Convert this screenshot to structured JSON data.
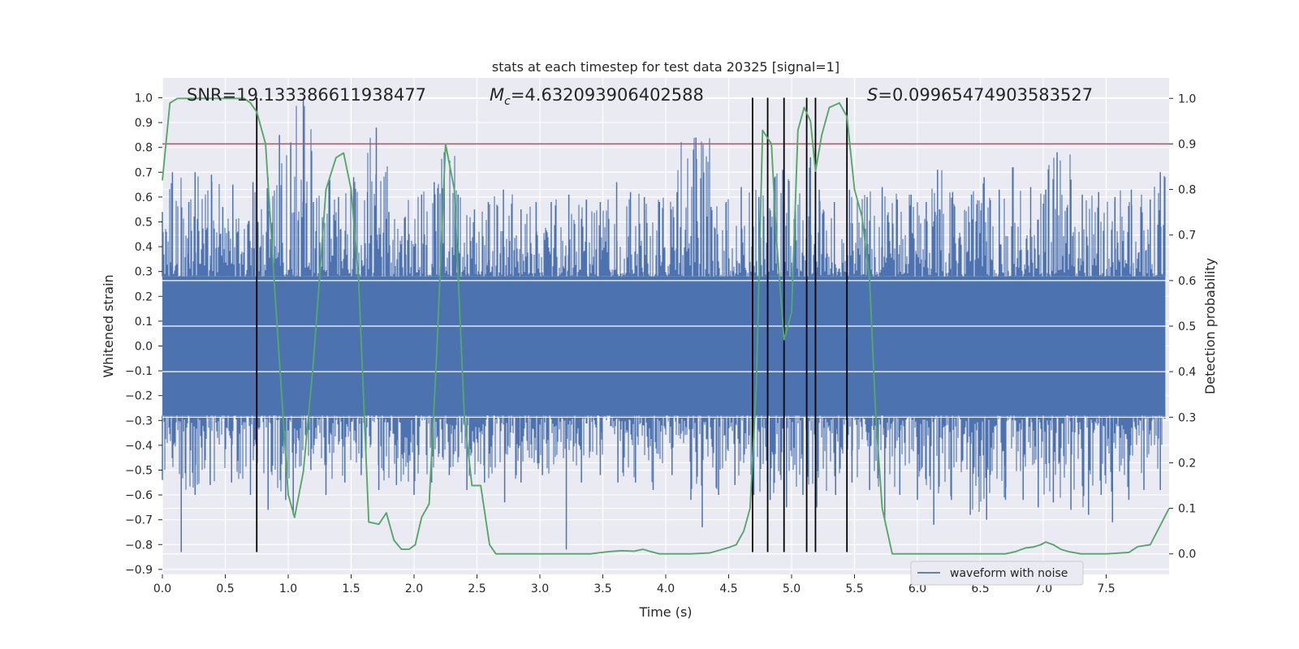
{
  "chart_data": {
    "type": "line",
    "title": "stats at each timestep for test data 20325 [signal=1]",
    "xlabel": "Time (s)",
    "ylabel": "Whitened strain",
    "y2label": "Detection probability",
    "xlim": [
      0.0,
      8.0
    ],
    "ylim": [
      -0.92,
      1.08
    ],
    "y2lim": [
      -0.045,
      1.045
    ],
    "x_ticks": [
      "0.0",
      "0.5",
      "1.0",
      "1.5",
      "2.0",
      "2.5",
      "3.0",
      "3.5",
      "4.0",
      "4.5",
      "5.0",
      "5.5",
      "6.0",
      "6.5",
      "7.0",
      "7.5"
    ],
    "y_ticks": [
      "1.0",
      "0.9",
      "0.8",
      "0.7",
      "0.6",
      "0.5",
      "0.4",
      "0.3",
      "0.2",
      "0.1",
      "0.0",
      "−0.1",
      "−0.2",
      "−0.3",
      "−0.4",
      "−0.5",
      "−0.6",
      "−0.7",
      "−0.8",
      "−0.9"
    ],
    "y2_ticks": [
      "1.0",
      "0.9",
      "0.8",
      "0.7",
      "0.6",
      "0.5",
      "0.4",
      "0.3",
      "0.2",
      "0.1",
      "0.0"
    ],
    "annotations": {
      "snr": "SNR=19.133386611938477",
      "mc_symbol": "M",
      "mc_sub": "c",
      "mc_value": "=4.632093906402588",
      "s_symbol": "S",
      "s_value": "=0.09965474903583527"
    },
    "legend": {
      "entries": [
        "waveform with noise"
      ],
      "placement": "lower-right"
    },
    "grid": true,
    "threshold": {
      "axis": "right",
      "value": 0.9,
      "color": "#c44e52"
    },
    "vertical_markers": [
      0.75,
      4.69,
      4.81,
      4.94,
      5.12,
      5.19,
      5.44
    ],
    "marker_range": [
      -0.83,
      1.0
    ],
    "waveform": {
      "name": "waveform with noise",
      "color": "#4c72b0",
      "core_band": [
        -0.28,
        0.28
      ],
      "positive_peaks": [
        {
          "x": 0.0,
          "y": 0.54
        },
        {
          "x": 0.08,
          "y": 0.7
        },
        {
          "x": 0.21,
          "y": 0.58
        },
        {
          "x": 0.26,
          "y": 0.7
        },
        {
          "x": 0.39,
          "y": 0.69
        },
        {
          "x": 0.48,
          "y": 0.56
        },
        {
          "x": 0.56,
          "y": 0.65
        },
        {
          "x": 0.72,
          "y": 0.66
        },
        {
          "x": 0.76,
          "y": 0.5
        },
        {
          "x": 0.84,
          "y": 0.68
        },
        {
          "x": 0.93,
          "y": 0.85
        },
        {
          "x": 1.02,
          "y": 0.82
        },
        {
          "x": 1.12,
          "y": 1.0
        },
        {
          "x": 1.2,
          "y": 0.58
        },
        {
          "x": 1.33,
          "y": 0.67
        },
        {
          "x": 1.4,
          "y": 0.6
        },
        {
          "x": 1.52,
          "y": 0.68
        },
        {
          "x": 1.63,
          "y": 0.62
        },
        {
          "x": 1.7,
          "y": 0.88
        },
        {
          "x": 1.8,
          "y": 0.54
        },
        {
          "x": 1.93,
          "y": 0.52
        },
        {
          "x": 2.06,
          "y": 0.61
        },
        {
          "x": 2.16,
          "y": 0.66
        },
        {
          "x": 2.24,
          "y": 0.78
        },
        {
          "x": 2.35,
          "y": 0.61
        },
        {
          "x": 2.48,
          "y": 0.55
        },
        {
          "x": 2.59,
          "y": 0.58
        },
        {
          "x": 2.71,
          "y": 0.63
        },
        {
          "x": 2.85,
          "y": 0.55
        },
        {
          "x": 2.97,
          "y": 0.58
        },
        {
          "x": 3.09,
          "y": 0.58
        },
        {
          "x": 3.23,
          "y": 0.61
        },
        {
          "x": 3.37,
          "y": 0.59
        },
        {
          "x": 3.48,
          "y": 0.58
        },
        {
          "x": 3.61,
          "y": 0.66
        },
        {
          "x": 3.72,
          "y": 0.62
        },
        {
          "x": 3.83,
          "y": 0.6
        },
        {
          "x": 3.95,
          "y": 0.58
        },
        {
          "x": 4.09,
          "y": 0.62
        },
        {
          "x": 4.24,
          "y": 0.84
        },
        {
          "x": 4.36,
          "y": 0.56
        },
        {
          "x": 4.48,
          "y": 0.58
        },
        {
          "x": 4.6,
          "y": 0.64
        },
        {
          "x": 4.74,
          "y": 0.6
        },
        {
          "x": 4.86,
          "y": 0.64
        },
        {
          "x": 4.93,
          "y": 0.71
        },
        {
          "x": 5.03,
          "y": 0.55
        },
        {
          "x": 5.15,
          "y": 0.76
        },
        {
          "x": 5.22,
          "y": 0.63
        },
        {
          "x": 5.34,
          "y": 0.58
        },
        {
          "x": 5.46,
          "y": 0.63
        },
        {
          "x": 5.6,
          "y": 0.6
        },
        {
          "x": 5.72,
          "y": 0.64
        },
        {
          "x": 5.84,
          "y": 0.59
        },
        {
          "x": 5.95,
          "y": 0.61
        },
        {
          "x": 6.07,
          "y": 0.58
        },
        {
          "x": 6.16,
          "y": 0.71
        },
        {
          "x": 6.28,
          "y": 0.62
        },
        {
          "x": 6.43,
          "y": 0.61
        },
        {
          "x": 6.53,
          "y": 0.68
        },
        {
          "x": 6.65,
          "y": 0.63
        },
        {
          "x": 6.76,
          "y": 0.72
        },
        {
          "x": 6.9,
          "y": 0.64
        },
        {
          "x": 7.02,
          "y": 0.63
        },
        {
          "x": 7.11,
          "y": 0.78
        },
        {
          "x": 7.22,
          "y": 0.67
        },
        {
          "x": 7.31,
          "y": 0.61
        },
        {
          "x": 7.44,
          "y": 0.62
        },
        {
          "x": 7.57,
          "y": 0.6
        },
        {
          "x": 7.7,
          "y": 0.63
        },
        {
          "x": 7.85,
          "y": 0.59
        },
        {
          "x": 7.93,
          "y": 0.7
        }
      ],
      "negative_peaks": [
        {
          "x": 0.0,
          "y": -0.54
        },
        {
          "x": 0.15,
          "y": -0.83
        },
        {
          "x": 0.26,
          "y": -0.6
        },
        {
          "x": 0.38,
          "y": -0.56
        },
        {
          "x": 0.55,
          "y": -0.55
        },
        {
          "x": 0.7,
          "y": -0.6
        },
        {
          "x": 0.84,
          "y": -0.66
        },
        {
          "x": 0.98,
          "y": -0.62
        },
        {
          "x": 1.04,
          "y": -0.68
        },
        {
          "x": 1.18,
          "y": -0.5
        },
        {
          "x": 1.3,
          "y": -0.6
        },
        {
          "x": 1.45,
          "y": -0.55
        },
        {
          "x": 1.58,
          "y": -0.52
        },
        {
          "x": 1.72,
          "y": -0.58
        },
        {
          "x": 1.86,
          "y": -0.56
        },
        {
          "x": 2.0,
          "y": -0.6
        },
        {
          "x": 2.14,
          "y": -0.55
        },
        {
          "x": 2.28,
          "y": -0.52
        },
        {
          "x": 2.42,
          "y": -0.58
        },
        {
          "x": 2.56,
          "y": -0.55
        },
        {
          "x": 2.72,
          "y": -0.63
        },
        {
          "x": 2.85,
          "y": -0.55
        },
        {
          "x": 3.02,
          "y": -0.52
        },
        {
          "x": 3.21,
          "y": -0.82
        },
        {
          "x": 3.33,
          "y": -0.55
        },
        {
          "x": 3.48,
          "y": -0.52
        },
        {
          "x": 3.62,
          "y": -0.55
        },
        {
          "x": 3.76,
          "y": -0.55
        },
        {
          "x": 3.9,
          "y": -0.58
        },
        {
          "x": 4.05,
          "y": -0.52
        },
        {
          "x": 4.2,
          "y": -0.62
        },
        {
          "x": 4.29,
          "y": -0.73
        },
        {
          "x": 4.42,
          "y": -0.6
        },
        {
          "x": 4.55,
          "y": -0.56
        },
        {
          "x": 4.7,
          "y": -0.6
        },
        {
          "x": 4.83,
          "y": -0.62
        },
        {
          "x": 4.96,
          "y": -0.65
        },
        {
          "x": 5.09,
          "y": -0.6
        },
        {
          "x": 5.2,
          "y": -0.65
        },
        {
          "x": 5.35,
          "y": -0.6
        },
        {
          "x": 5.48,
          "y": -0.55
        },
        {
          "x": 5.62,
          "y": -0.58
        },
        {
          "x": 5.74,
          "y": -0.7
        },
        {
          "x": 5.86,
          "y": -0.6
        },
        {
          "x": 6.0,
          "y": -0.62
        },
        {
          "x": 6.13,
          "y": -0.72
        },
        {
          "x": 6.27,
          "y": -0.62
        },
        {
          "x": 6.42,
          "y": -0.68
        },
        {
          "x": 6.55,
          "y": -0.7
        },
        {
          "x": 6.7,
          "y": -0.62
        },
        {
          "x": 6.84,
          "y": -0.62
        },
        {
          "x": 6.96,
          "y": -0.65
        },
        {
          "x": 7.08,
          "y": -0.63
        },
        {
          "x": 7.22,
          "y": -0.66
        },
        {
          "x": 7.36,
          "y": -0.68
        },
        {
          "x": 7.46,
          "y": -0.6
        },
        {
          "x": 7.55,
          "y": -0.71
        },
        {
          "x": 7.68,
          "y": -0.62
        },
        {
          "x": 7.8,
          "y": -0.58
        },
        {
          "x": 7.93,
          "y": -0.58
        }
      ]
    },
    "probability": {
      "color": "#55a868",
      "x": [
        0.0,
        0.06,
        0.12,
        0.2,
        0.3,
        0.4,
        0.5,
        0.6,
        0.65,
        0.7,
        0.75,
        0.82,
        0.9,
        1.0,
        1.05,
        1.12,
        1.2,
        1.3,
        1.38,
        1.44,
        1.5,
        1.56,
        1.64,
        1.72,
        1.78,
        1.84,
        1.9,
        1.96,
        2.01,
        2.06,
        2.12,
        2.18,
        2.25,
        2.32,
        2.4,
        2.46,
        2.53,
        2.6,
        2.65,
        2.72,
        2.8,
        3.0,
        3.2,
        3.4,
        3.55,
        3.65,
        3.75,
        3.82,
        3.88,
        3.95,
        4.05,
        4.2,
        4.35,
        4.45,
        4.5,
        4.56,
        4.62,
        4.67,
        4.72,
        4.77,
        4.84,
        4.88,
        4.94,
        5.0,
        5.05,
        5.1,
        5.15,
        5.19,
        5.24,
        5.3,
        5.38,
        5.44,
        5.5,
        5.56,
        5.62,
        5.67,
        5.72,
        5.8,
        5.9,
        6.1,
        6.3,
        6.5,
        6.7,
        6.78,
        6.86,
        6.92,
        6.98,
        7.02,
        7.08,
        7.14,
        7.2,
        7.3,
        7.5,
        7.68,
        7.75,
        7.85,
        8.0
      ],
      "y": [
        0.82,
        0.99,
        1.0,
        1.0,
        1.0,
        1.0,
        1.0,
        1.0,
        1.0,
        0.99,
        0.97,
        0.9,
        0.55,
        0.13,
        0.08,
        0.18,
        0.42,
        0.8,
        0.87,
        0.88,
        0.8,
        0.6,
        0.07,
        0.065,
        0.09,
        0.03,
        0.01,
        0.01,
        0.02,
        0.08,
        0.11,
        0.44,
        0.9,
        0.8,
        0.3,
        0.15,
        0.15,
        0.02,
        0.0,
        0.0,
        0.0,
        0.0,
        0.0,
        0.0,
        0.005,
        0.007,
        0.006,
        0.01,
        0.005,
        0.0,
        0.0,
        0.0,
        0.002,
        0.01,
        0.014,
        0.02,
        0.05,
        0.1,
        0.37,
        0.93,
        0.9,
        0.69,
        0.47,
        0.53,
        0.93,
        0.98,
        0.95,
        0.84,
        0.92,
        0.98,
        0.99,
        0.96,
        0.8,
        0.74,
        0.6,
        0.3,
        0.1,
        0.0,
        0.0,
        0.0,
        0.0,
        0.0,
        0.0,
        0.005,
        0.013,
        0.015,
        0.02,
        0.026,
        0.02,
        0.01,
        0.005,
        0.0,
        0.0,
        0.003,
        0.016,
        0.02,
        0.1
      ]
    }
  }
}
